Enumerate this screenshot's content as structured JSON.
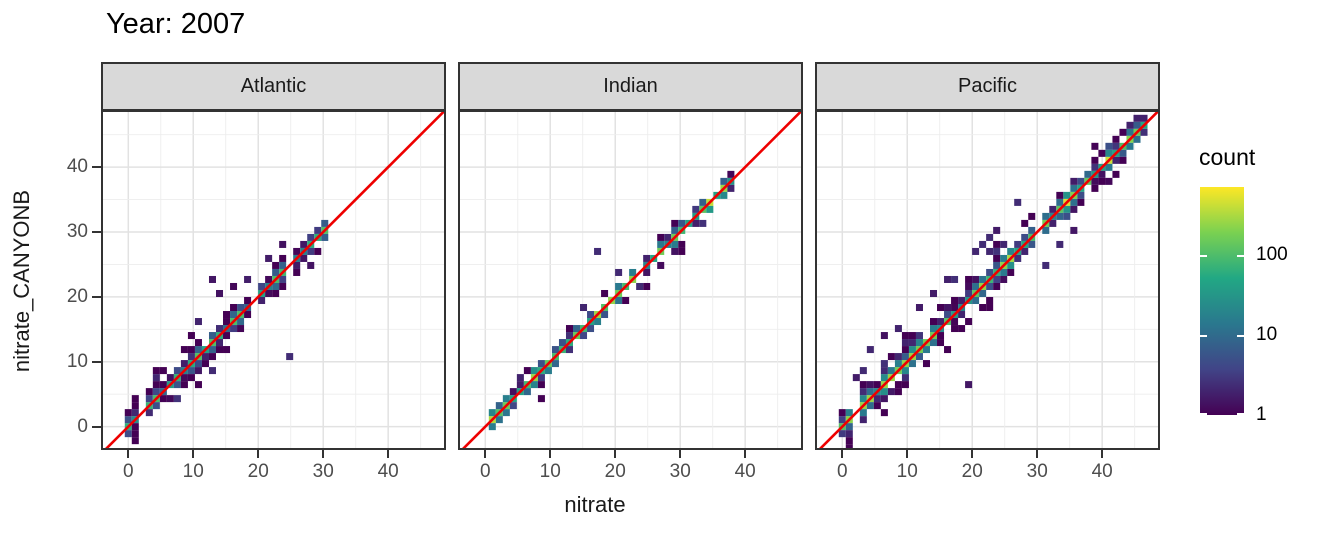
{
  "page": {
    "title": "Year: 2007"
  },
  "chart_data": {
    "type": "heatmap",
    "subtype": "bin2d-scatter-facets",
    "title": "Year: 2007",
    "xlabel": "nitrate",
    "ylabel": "nitrate_CANYONB",
    "facet_labels": [
      "Atlantic",
      "Indian",
      "Pacific"
    ],
    "x_ticks": [
      0,
      10,
      20,
      30,
      40
    ],
    "y_ticks": [
      0,
      10,
      20,
      30,
      40
    ],
    "xlim": [
      -4.2,
      48.9
    ],
    "ylim": [
      -3.6,
      48.8
    ],
    "grid_step": 5,
    "binwidth": 1.08,
    "identity_line": {
      "equation": "y = x",
      "color": "#EE0000",
      "width": 2.6
    },
    "colors": {
      "strip_bg": "#d9d9d9",
      "strip_border": "#333333",
      "panel_border": "#333333",
      "panel_bg": "#ffffff",
      "grid_major": "#e2e2e2",
      "grid_minor": "#ededed",
      "tick_text": "#4d4d4d"
    },
    "legend": {
      "title": "count",
      "ticks": [
        1,
        10,
        100
      ],
      "scale_max": 700,
      "log_scale": true,
      "viridis": [
        "#440154",
        "#414487",
        "#2a788e",
        "#22a884",
        "#7ad151",
        "#fde725"
      ]
    },
    "facets": [
      {
        "label": "Atlantic",
        "seed": 42,
        "diag_min": -0.5,
        "diag_max": 30.6,
        "spread": 2.2,
        "core_max": 130,
        "hot_zones": [
          [
            -1,
            3,
            2.2
          ]
        ],
        "wide_zones": [
          [
            0,
            16
          ]
        ],
        "bias_zones": [
          [
            5,
            14,
            -1,
            0.35
          ]
        ],
        "outliers": [
          [
            25,
            11
          ],
          [
            12.5,
            22.5
          ],
          [
            16,
            21.5
          ],
          [
            10.5,
            16.5
          ],
          [
            24,
            28
          ],
          [
            21.5,
            26
          ],
          [
            28,
            24.5
          ],
          [
            14,
            20.5
          ],
          [
            4,
            8
          ],
          [
            18,
            23
          ]
        ]
      },
      {
        "label": "Indian",
        "seed": 7,
        "diag_min": -0.5,
        "diag_max": 38.2,
        "spread": 1.2,
        "core_max": 280,
        "hot_zones": [
          [
            -1,
            2,
            2.4
          ],
          [
            32,
            38.5,
            1.6
          ]
        ],
        "wide_zones": [],
        "bias_zones": [
          [
            19,
            24,
            1,
            0.65
          ]
        ],
        "outliers": [
          [
            17,
            26.5
          ],
          [
            23.7,
            21.8
          ],
          [
            15,
            18.5
          ],
          [
            5,
            7.5
          ],
          [
            27.5,
            24.8
          ],
          [
            29.5,
            26.5
          ],
          [
            34,
            31.5
          ]
        ]
      },
      {
        "label": "Pacific",
        "seed": 13,
        "diag_min": -0.5,
        "diag_max": 46.6,
        "spread": 2.4,
        "core_max": 300,
        "hot_zones": [
          [
            -1,
            2,
            2.3
          ],
          [
            34,
            41,
            1.8
          ]
        ],
        "wide_zones": [
          [
            0,
            26
          ]
        ],
        "bias_zones": [
          [
            6,
            16,
            1,
            0.55
          ],
          [
            19,
            25,
            1,
            0.5
          ]
        ],
        "outliers": [
          [
            19,
            6
          ],
          [
            3,
            9
          ],
          [
            4.5,
            12
          ],
          [
            6,
            13.5
          ],
          [
            17,
            23
          ],
          [
            14,
            21
          ],
          [
            36,
            30
          ],
          [
            12,
            18.5
          ],
          [
            20.5,
            27
          ],
          [
            22,
            28.5
          ],
          [
            23,
            29.5
          ],
          [
            24,
            30
          ],
          [
            2.5,
            8
          ],
          [
            27,
            34.5
          ],
          [
            41,
            37.5
          ],
          [
            33,
            28
          ],
          [
            16.5,
            22.5
          ],
          [
            9,
            15
          ],
          [
            38.5,
            43
          ],
          [
            31,
            24.5
          ]
        ]
      }
    ]
  }
}
